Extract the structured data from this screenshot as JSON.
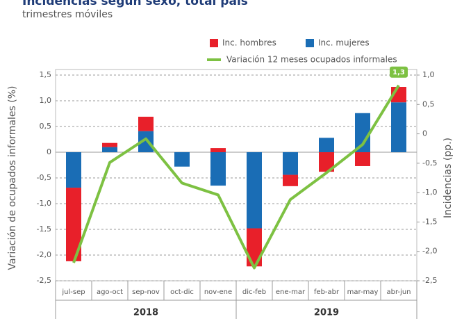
{
  "chart_data": {
    "type": "bar",
    "title": "Incidencias según sexo, total país",
    "subtitle": "trimestres móviles",
    "ylabel": "Variación de ocupados informales (%)",
    "y2label": "Incidencias (pp.)",
    "categories": [
      "jul-sep",
      "ago-oct",
      "sep-nov",
      "oct-dic",
      "nov-ene",
      "dic-feb",
      "ene-mar",
      "feb-abr",
      "mar-may",
      "abr-jun"
    ],
    "years": [
      "2018",
      "2019"
    ],
    "series": [
      {
        "name": "Inc. hombres",
        "color": "#e8202a",
        "type": "bar",
        "values": [
          -1.43,
          0.08,
          0.28,
          0,
          0.08,
          -0.74,
          -0.22,
          -0.38,
          -0.27,
          0.3
        ]
      },
      {
        "name": "Inc. mujeres",
        "color": "#1a6db5",
        "type": "bar",
        "values": [
          -0.69,
          0.1,
          0.41,
          -0.28,
          -0.65,
          -1.48,
          -0.44,
          0.28,
          0.76,
          0.97
        ]
      },
      {
        "name": "Variación 12 meses ocupados informales",
        "color": "#7dc142",
        "type": "line",
        "values": [
          -2.15,
          -0.2,
          0.26,
          -0.6,
          -0.83,
          -2.25,
          -0.92,
          -0.4,
          0.15,
          1.3
        ],
        "value_labels": [
          null,
          null,
          null,
          null,
          null,
          null,
          null,
          null,
          null,
          "1,3"
        ]
      }
    ],
    "ylim": [
      -2.5,
      1.5
    ],
    "yticks": [
      {
        "value": -2.5,
        "label": "-2,5"
      },
      {
        "value": -2,
        "label": "-2,0"
      },
      {
        "value": -1.5,
        "label": "-1,5"
      },
      {
        "value": -1,
        "label": "-1,0"
      },
      {
        "value": -0.5,
        "label": "-0,5"
      },
      0,
      {
        "value": 0.5,
        "label": "0,5"
      },
      {
        "value": 1,
        "label": "1,0"
      },
      {
        "value": 1.5,
        "label": "1,5"
      }
    ],
    "y2lim": [
      -2.5,
      1.0
    ],
    "y2ticks": [
      {
        "value": -2.5,
        "label": "-2,5"
      },
      {
        "value": -2,
        "label": "-2,0"
      },
      {
        "value": -1.5,
        "label": "-1,5"
      },
      {
        "value": -1,
        "label": "-1,0"
      },
      {
        "value": -0.5,
        "label": "-0,5"
      },
      0,
      {
        "value": 0.5,
        "label": "0,5"
      },
      {
        "value": 1,
        "label": "1,0"
      }
    ],
    "grid": true
  }
}
